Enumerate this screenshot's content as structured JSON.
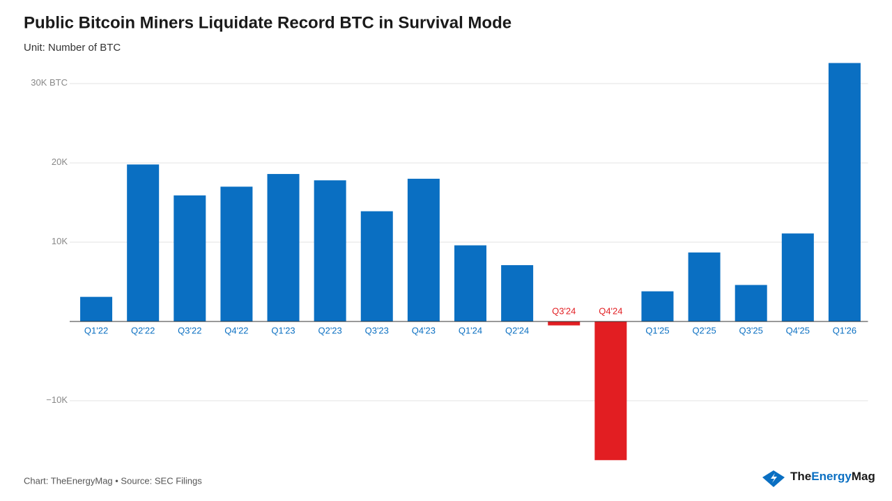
{
  "chart_data": {
    "type": "bar",
    "title": "Public Bitcoin Miners Liquidate Record BTC in Survival Mode",
    "subtitle": "Unit: Number of BTC",
    "source": "Chart: TheEnergyMag • Source: SEC Filings",
    "brand": [
      "The",
      "Energy",
      "Mag"
    ],
    "categories": [
      "Q1'22",
      "Q2'22",
      "Q3'22",
      "Q4'22",
      "Q1'23",
      "Q2'23",
      "Q3'23",
      "Q4'23",
      "Q1'24",
      "Q2'24",
      "Q3'24",
      "Q4'24",
      "Q1'25",
      "Q2'25",
      "Q3'25",
      "Q4'25",
      "Q1'26"
    ],
    "values": [
      3100,
      19800,
      15900,
      17000,
      18600,
      17800,
      13900,
      18000,
      9600,
      7100,
      -500,
      -17500,
      3800,
      8700,
      4600,
      11100,
      32600
    ],
    "color": "#0a6fc2",
    "negative_color": "#e21e22",
    "ylim": [
      -18000,
      33000
    ],
    "yticks": [
      {
        "value": -10000,
        "label": "−10K"
      },
      {
        "value": 10000,
        "label": "10K"
      },
      {
        "value": 20000,
        "label": "20K"
      },
      {
        "value": 30000,
        "label": "30K BTC"
      }
    ],
    "grid": true
  }
}
